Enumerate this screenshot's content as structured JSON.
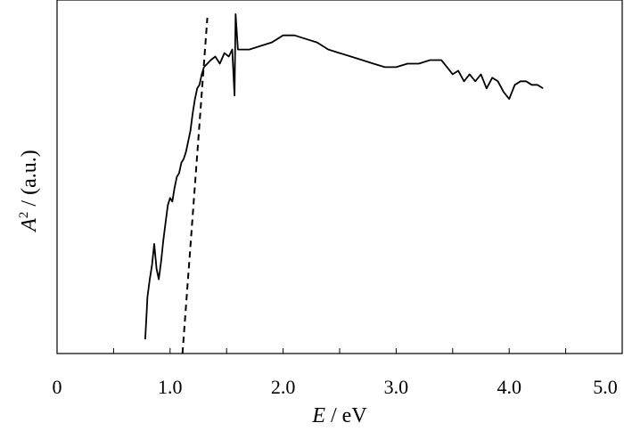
{
  "chart_data": {
    "type": "line",
    "xlabel": {
      "symbol": "E",
      "unit": " / eV"
    },
    "ylabel": {
      "symbol": "A",
      "power": "2",
      "unit": " / (a.u.)"
    },
    "xlim": [
      0,
      5.0
    ],
    "ylim": [
      0,
      1
    ],
    "x_ticks": [
      0,
      0.5,
      1.0,
      1.5,
      2.0,
      2.5,
      3.0,
      3.5,
      4.0,
      4.5,
      5.0
    ],
    "x_tick_labels": [
      "0",
      "1.0",
      "2.0",
      "3.0",
      "4.0",
      "5.0"
    ],
    "x_tick_label_values": [
      0,
      1.0,
      2.0,
      3.0,
      4.0,
      5.0
    ],
    "y_tick_labels_shown": false,
    "grid": false,
    "legend": "none",
    "series": [
      {
        "style": "solid",
        "color": "#000000",
        "x": [
          0.78,
          0.79,
          0.8,
          0.82,
          0.84,
          0.86,
          0.88,
          0.9,
          0.92,
          0.94,
          0.96,
          0.98,
          1.0,
          1.02,
          1.04,
          1.06,
          1.08,
          1.1,
          1.12,
          1.14,
          1.16,
          1.18,
          1.2,
          1.22,
          1.24,
          1.26,
          1.28,
          1.3,
          1.33,
          1.36,
          1.4,
          1.44,
          1.48,
          1.52,
          1.55,
          1.57,
          1.58,
          1.6,
          1.65,
          1.7,
          1.8,
          1.9,
          2.0,
          2.1,
          2.2,
          2.3,
          2.4,
          2.5,
          2.6,
          2.7,
          2.8,
          2.9,
          3.0,
          3.1,
          3.2,
          3.3,
          3.4,
          3.45,
          3.5,
          3.55,
          3.6,
          3.65,
          3.7,
          3.75,
          3.8,
          3.85,
          3.9,
          3.95,
          4.0,
          4.05,
          4.1,
          4.15,
          4.2,
          4.25,
          4.3
        ],
        "y": [
          0.04,
          0.1,
          0.16,
          0.21,
          0.25,
          0.31,
          0.24,
          0.21,
          0.26,
          0.32,
          0.37,
          0.42,
          0.44,
          0.43,
          0.47,
          0.5,
          0.51,
          0.54,
          0.55,
          0.57,
          0.6,
          0.63,
          0.68,
          0.72,
          0.75,
          0.76,
          0.79,
          0.81,
          0.82,
          0.83,
          0.84,
          0.82,
          0.85,
          0.84,
          0.86,
          0.73,
          0.96,
          0.86,
          0.86,
          0.86,
          0.87,
          0.88,
          0.9,
          0.9,
          0.89,
          0.88,
          0.86,
          0.85,
          0.84,
          0.83,
          0.82,
          0.81,
          0.81,
          0.82,
          0.82,
          0.83,
          0.83,
          0.81,
          0.79,
          0.8,
          0.77,
          0.79,
          0.77,
          0.79,
          0.75,
          0.78,
          0.77,
          0.74,
          0.72,
          0.76,
          0.77,
          0.77,
          0.76,
          0.76,
          0.75
        ]
      },
      {
        "style": "dashed",
        "color": "#000000",
        "x": [
          1.11,
          1.33
        ],
        "y": [
          0.0,
          0.95
        ]
      }
    ]
  }
}
